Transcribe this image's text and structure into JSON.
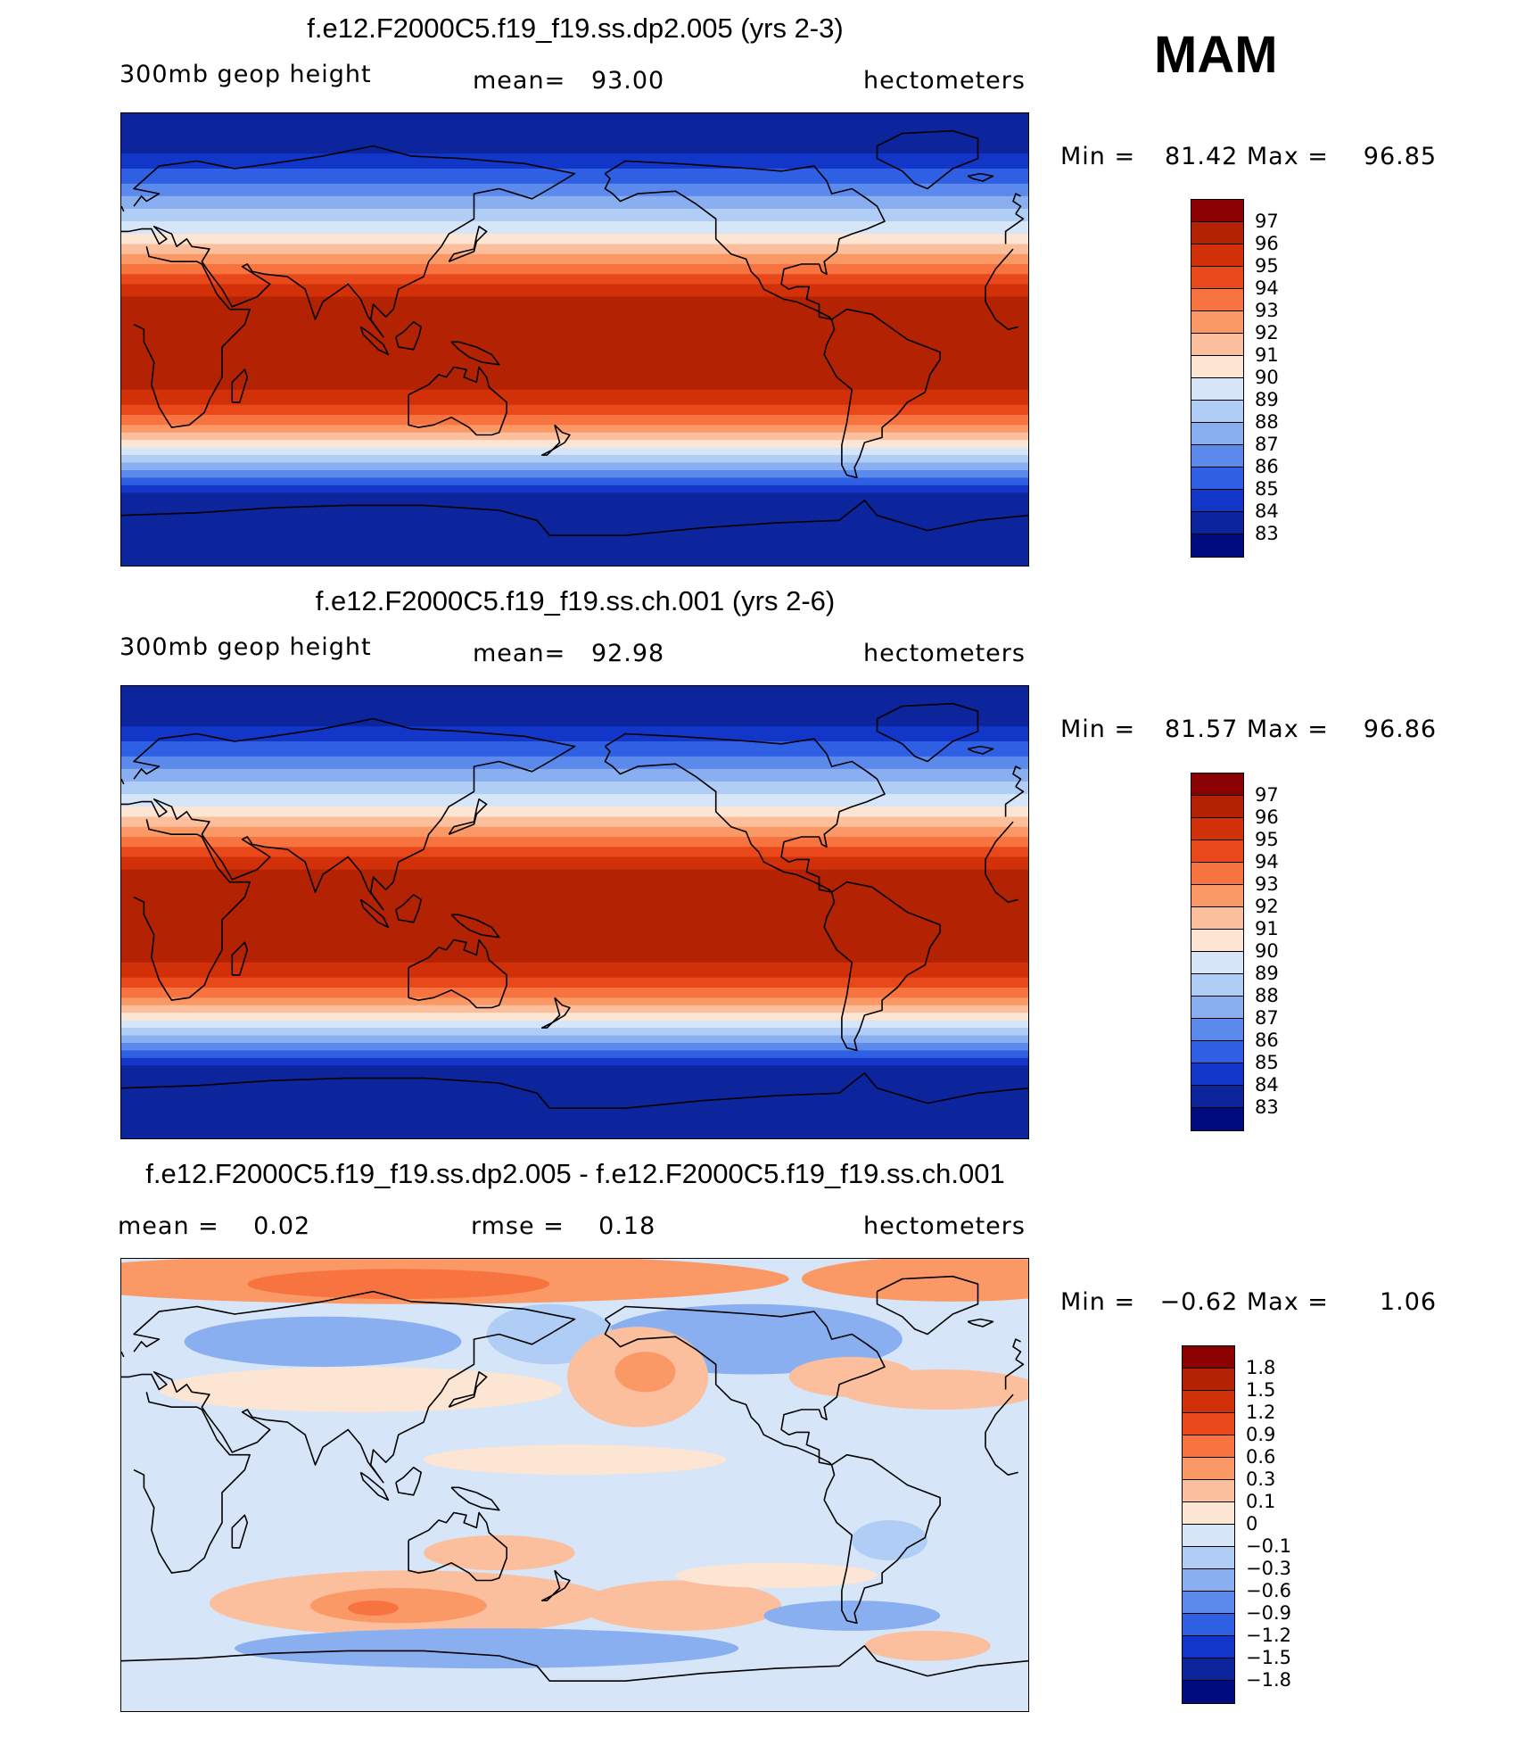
{
  "season": "MAM",
  "panels": [
    {
      "title": "f.e12.F2000C5.f19_f19.ss.dp2.005 (yrs 2-3)",
      "variable": "300mb geop height",
      "mean_text": "mean=   93.00",
      "units": "hectometers",
      "min_label": "Min =",
      "min_value": "81.42",
      "max_label": "Max =",
      "max_value": "96.85",
      "field": {
        "type": "zonal_height",
        "lat_bands": [
          {
            "lat": [
              90,
              74
            ],
            "level": 83
          },
          {
            "lat": [
              74,
              68
            ],
            "level": 84
          },
          {
            "lat": [
              68,
              62
            ],
            "level": 85
          },
          {
            "lat": [
              62,
              57
            ],
            "level": 86
          },
          {
            "lat": [
              57,
              52
            ],
            "level": 87
          },
          {
            "lat": [
              52,
              47
            ],
            "level": 88
          },
          {
            "lat": [
              47,
              42
            ],
            "level": 89
          },
          {
            "lat": [
              42,
              38
            ],
            "level": 90
          },
          {
            "lat": [
              38,
              34
            ],
            "level": 91
          },
          {
            "lat": [
              34,
              30
            ],
            "level": 92
          },
          {
            "lat": [
              30,
              26
            ],
            "level": 93
          },
          {
            "lat": [
              26,
              22
            ],
            "level": 94
          },
          {
            "lat": [
              22,
              17
            ],
            "level": 95
          },
          {
            "lat": [
              17,
              -20
            ],
            "level": 96
          },
          {
            "lat": [
              -20,
              -26
            ],
            "level": 95
          },
          {
            "lat": [
              -26,
              -30
            ],
            "level": 94
          },
          {
            "lat": [
              -30,
              -34
            ],
            "level": 93
          },
          {
            "lat": [
              -34,
              -37
            ],
            "level": 92
          },
          {
            "lat": [
              -37,
              -40
            ],
            "level": 91
          },
          {
            "lat": [
              -40,
              -43
            ],
            "level": 90
          },
          {
            "lat": [
              -43,
              -46
            ],
            "level": 89
          },
          {
            "lat": [
              -46,
              -49
            ],
            "level": 88
          },
          {
            "lat": [
              -49,
              -52
            ],
            "level": 87
          },
          {
            "lat": [
              -52,
              -55
            ],
            "level": 86
          },
          {
            "lat": [
              -55,
              -58
            ],
            "level": 85
          },
          {
            "lat": [
              -58,
              -61
            ],
            "level": 84
          },
          {
            "lat": [
              -61,
              -90
            ],
            "level": 83
          }
        ]
      },
      "colorbar": {
        "labels": [
          "97",
          "96",
          "95",
          "94",
          "93",
          "92",
          "91",
          "90",
          "89",
          "88",
          "87",
          "86",
          "85",
          "84",
          "83"
        ],
        "colors": [
          "#8b0000",
          "#b22203",
          "#d23009",
          "#e8481a",
          "#f7733f",
          "#fa9966",
          "#fcbf9e",
          "#fde5d3",
          "#d6e6f8",
          "#b0cdf5",
          "#89aff0",
          "#5b8aec",
          "#2f60e4",
          "#1136c8",
          "#0c249c",
          "#000b80"
        ]
      }
    },
    {
      "title": "f.e12.F2000C5.f19_f19.ss.ch.001 (yrs 2-6)",
      "variable": "300mb geop height",
      "mean_text": "mean=   92.98",
      "units": "hectometers",
      "min_label": "Min =",
      "min_value": "81.57",
      "max_label": "Max =",
      "max_value": "96.86",
      "field": {
        "type": "zonal_height",
        "lat_bands": [
          {
            "lat": [
              90,
              74
            ],
            "level": 83
          },
          {
            "lat": [
              74,
              68
            ],
            "level": 84
          },
          {
            "lat": [
              68,
              62
            ],
            "level": 85
          },
          {
            "lat": [
              62,
              57
            ],
            "level": 86
          },
          {
            "lat": [
              57,
              52
            ],
            "level": 87
          },
          {
            "lat": [
              52,
              47
            ],
            "level": 88
          },
          {
            "lat": [
              47,
              42
            ],
            "level": 89
          },
          {
            "lat": [
              42,
              38
            ],
            "level": 90
          },
          {
            "lat": [
              38,
              34
            ],
            "level": 91
          },
          {
            "lat": [
              34,
              30
            ],
            "level": 92
          },
          {
            "lat": [
              30,
              26
            ],
            "level": 93
          },
          {
            "lat": [
              26,
              22
            ],
            "level": 94
          },
          {
            "lat": [
              22,
              17
            ],
            "level": 95
          },
          {
            "lat": [
              17,
              -20
            ],
            "level": 96
          },
          {
            "lat": [
              -20,
              -26
            ],
            "level": 95
          },
          {
            "lat": [
              -26,
              -30
            ],
            "level": 94
          },
          {
            "lat": [
              -30,
              -34
            ],
            "level": 93
          },
          {
            "lat": [
              -34,
              -37
            ],
            "level": 92
          },
          {
            "lat": [
              -37,
              -40
            ],
            "level": 91
          },
          {
            "lat": [
              -40,
              -43
            ],
            "level": 90
          },
          {
            "lat": [
              -43,
              -46
            ],
            "level": 89
          },
          {
            "lat": [
              -46,
              -49
            ],
            "level": 88
          },
          {
            "lat": [
              -49,
              -52
            ],
            "level": 87
          },
          {
            "lat": [
              -52,
              -55
            ],
            "level": 86
          },
          {
            "lat": [
              -55,
              -58
            ],
            "level": 85
          },
          {
            "lat": [
              -58,
              -61
            ],
            "level": 84
          },
          {
            "lat": [
              -61,
              -90
            ],
            "level": 83
          }
        ]
      },
      "colorbar": {
        "labels": [
          "97",
          "96",
          "95",
          "94",
          "93",
          "92",
          "91",
          "90",
          "89",
          "88",
          "87",
          "86",
          "85",
          "84",
          "83"
        ],
        "colors": [
          "#8b0000",
          "#b22203",
          "#d23009",
          "#e8481a",
          "#f7733f",
          "#fa9966",
          "#fcbf9e",
          "#fde5d3",
          "#d6e6f8",
          "#b0cdf5",
          "#89aff0",
          "#5b8aec",
          "#2f60e4",
          "#1136c8",
          "#0c249c",
          "#000b80"
        ]
      }
    },
    {
      "title": "f.e12.F2000C5.f19_f19.ss.dp2.005 - f.e12.F2000C5.f19_f19.ss.ch.001",
      "variable": "mean =    0.02",
      "mean_text": "rmse =    0.18",
      "units": "hectometers",
      "min_label": "Min =",
      "min_value": "−0.62",
      "max_label": "Max =",
      "max_value": "1.06",
      "field": {
        "type": "difference",
        "background_level": -0.05,
        "blobs": [
          {
            "lon": 115,
            "lat": 82,
            "dlon": 150,
            "dlat": 10,
            "level": 0.35
          },
          {
            "lon": 110,
            "lat": 80,
            "dlon": 60,
            "dlat": 6,
            "level": 0.7
          },
          {
            "lon": 330,
            "lat": 82,
            "dlon": 60,
            "dlat": 9,
            "level": 0.35
          },
          {
            "lon": 80,
            "lat": 57,
            "dlon": 55,
            "dlat": 10,
            "level": -0.35
          },
          {
            "lon": 100,
            "lat": 58,
            "dlon": 25,
            "dlat": 6,
            "level": -0.6
          },
          {
            "lon": 45,
            "lat": 56,
            "dlon": 12,
            "dlat": 5,
            "level": -0.6
          },
          {
            "lon": 250,
            "lat": 58,
            "dlon": 60,
            "dlat": 14,
            "level": -0.35
          },
          {
            "lon": 255,
            "lat": 58,
            "dlon": 30,
            "dlat": 7,
            "level": -0.6
          },
          {
            "lon": 170,
            "lat": 60,
            "dlon": 25,
            "dlat": 12,
            "level": -0.3
          },
          {
            "lon": 205,
            "lat": 43,
            "dlon": 28,
            "dlat": 20,
            "level": 0.2
          },
          {
            "lon": 208,
            "lat": 45,
            "dlon": 12,
            "dlat": 8,
            "level": 0.35
          },
          {
            "lon": 95,
            "lat": 38,
            "dlon": 80,
            "dlat": 9,
            "level": 0.05
          },
          {
            "lon": 290,
            "lat": 43,
            "dlon": 25,
            "dlat": 8,
            "level": 0.25
          },
          {
            "lon": 325,
            "lat": 38,
            "dlon": 40,
            "dlat": 8,
            "level": 0.1
          },
          {
            "lon": 115,
            "lat": -47,
            "dlon": 80,
            "dlat": 13,
            "level": 0.2
          },
          {
            "lon": 110,
            "lat": -48,
            "dlon": 35,
            "dlat": 7,
            "level": 0.35
          },
          {
            "lon": 100,
            "lat": -49,
            "dlon": 10,
            "dlat": 3,
            "level": 0.65
          },
          {
            "lon": 222,
            "lat": -48,
            "dlon": 40,
            "dlat": 10,
            "level": 0.2
          },
          {
            "lon": 150,
            "lat": -27,
            "dlon": 30,
            "dlat": 7,
            "level": 0.15
          },
          {
            "lon": 260,
            "lat": -36,
            "dlon": 40,
            "dlat": 5,
            "level": 0.05
          },
          {
            "lon": 320,
            "lat": -64,
            "dlon": 25,
            "dlat": 6,
            "level": 0.2
          },
          {
            "lon": 180,
            "lat": 10,
            "dlon": 60,
            "dlat": 6,
            "level": 0.05
          },
          {
            "lon": 145,
            "lat": -65,
            "dlon": 100,
            "dlat": 8,
            "level": -0.35
          },
          {
            "lon": 290,
            "lat": -52,
            "dlon": 35,
            "dlat": 6,
            "level": -0.35
          },
          {
            "lon": 305,
            "lat": -22,
            "dlon": 15,
            "dlat": 8,
            "level": -0.3
          }
        ]
      },
      "colorbar": {
        "labels": [
          "1.8",
          "1.5",
          "1.2",
          "0.9",
          "0.6",
          "0.3",
          "0.1",
          "0",
          "−0.1",
          "−0.3",
          "−0.6",
          "−0.9",
          "−1.2",
          "−1.5",
          "−1.8"
        ],
        "colors": [
          "#8b0000",
          "#b22203",
          "#d23009",
          "#e8481a",
          "#f7733f",
          "#fa9966",
          "#fcbf9e",
          "#fde5d3",
          "#d6e6f8",
          "#b0cdf5",
          "#89aff0",
          "#5b8aec",
          "#2f60e4",
          "#1136c8",
          "#0c249c",
          "#000b80"
        ]
      }
    }
  ]
}
